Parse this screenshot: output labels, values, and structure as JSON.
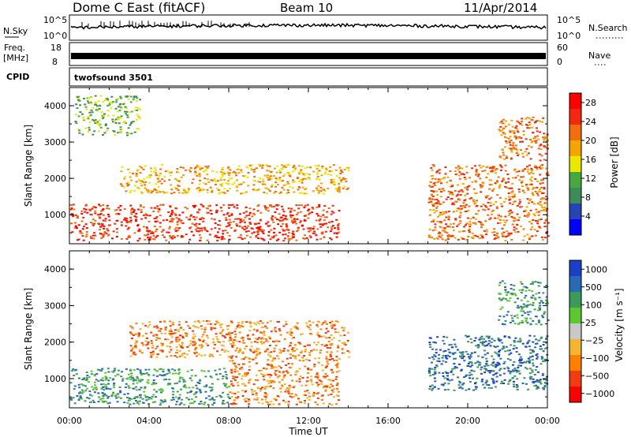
{
  "header": {
    "title": "Dome C East (fitACF)",
    "beam": "Beam 10",
    "date": "11/Apr/2014"
  },
  "summary": {
    "nsky_label": "N.Sky",
    "nsky_ticks": [
      "10^5",
      "10^0"
    ],
    "nsearch_label": "N.Search",
    "nsearch_ticks": [
      "10^5",
      "10^0"
    ],
    "freq_label": "Freq.",
    "freq_unit": "[MHz]",
    "freq_ticks": [
      "18",
      "8"
    ],
    "nave_label": "Nave",
    "nave_ticks": [
      "60",
      "0"
    ],
    "cpid_label": "CPID",
    "cpid_value": "twofsound 3501"
  },
  "colors": {
    "power": [
      "#0000ff",
      "#2545b4",
      "#3d8a5a",
      "#47a840",
      "#e8e800",
      "#f5a500",
      "#f06e10",
      "#f22810",
      "#ff0000"
    ],
    "velocity": [
      "#ff0000",
      "#f03c10",
      "#ff8000",
      "#f5b530",
      "#c8c8c8",
      "#5cc830",
      "#3c9a5a",
      "#2a6ab4",
      "#1a40c8"
    ],
    "ground_scatter": "#b4b4b4"
  },
  "chart_data": [
    {
      "type": "heatmap",
      "panel": "power",
      "ylabel": "Slant Range [km]",
      "ylim": [
        200,
        4500
      ],
      "yticks": [
        "1000",
        "2000",
        "3000",
        "4000"
      ],
      "xlim": [
        "00:00",
        "24:00"
      ],
      "colorbar_label": "Power [dB]",
      "colorbar_ticks": [
        "4",
        "8",
        "12",
        "16",
        "20",
        "24",
        "28"
      ],
      "colorbar_range": [
        0,
        30
      ],
      "regions": [
        {
          "x": [
            "00:00",
            "13:30"
          ],
          "range_km": [
            300,
            1300
          ],
          "value_db": 28
        },
        {
          "x": [
            "02:30",
            "14:00"
          ],
          "range_km": [
            1600,
            2400
          ],
          "value_db": 18
        },
        {
          "x": [
            "00:15",
            "03:30"
          ],
          "range_km": [
            3200,
            4300
          ],
          "value_db": 10
        },
        {
          "x": [
            "18:00",
            "24:00"
          ],
          "range_km": [
            300,
            2400
          ],
          "value_db": 22
        },
        {
          "x": [
            "21:30",
            "24:00"
          ],
          "range_km": [
            2500,
            3700
          ],
          "value_db": 24
        }
      ]
    },
    {
      "type": "heatmap",
      "panel": "velocity",
      "ylabel": "Slant Range [km]",
      "ylim": [
        200,
        4500
      ],
      "yticks": [
        "1000",
        "2000",
        "3000",
        "4000"
      ],
      "xlim": [
        "00:00",
        "24:00"
      ],
      "xticks": [
        "00:00",
        "04:00",
        "08:00",
        "12:00",
        "16:00",
        "20:00",
        "00:00"
      ],
      "xlabel": "Time UT",
      "colorbar_label": "Velocity [m s⁻¹]",
      "colorbar_ticks": [
        "1000",
        "500",
        "100",
        "25",
        "−25",
        "−100",
        "−500",
        "−1000"
      ],
      "regions": [
        {
          "x": [
            "00:00",
            "08:00"
          ],
          "range_km": [
            300,
            1300
          ],
          "value_ms": 150
        },
        {
          "x": [
            "08:00",
            "13:30"
          ],
          "range_km": [
            300,
            1600
          ],
          "value_ms": -300
        },
        {
          "x": [
            "03:00",
            "14:00"
          ],
          "range_km": [
            1600,
            2600
          ],
          "value_ms": -200
        },
        {
          "x": [
            "18:00",
            "24:00"
          ],
          "range_km": [
            700,
            2200
          ],
          "value_ms": 800
        },
        {
          "x": [
            "21:30",
            "24:00"
          ],
          "range_km": [
            2500,
            3700
          ],
          "value_ms": 300
        }
      ]
    }
  ]
}
